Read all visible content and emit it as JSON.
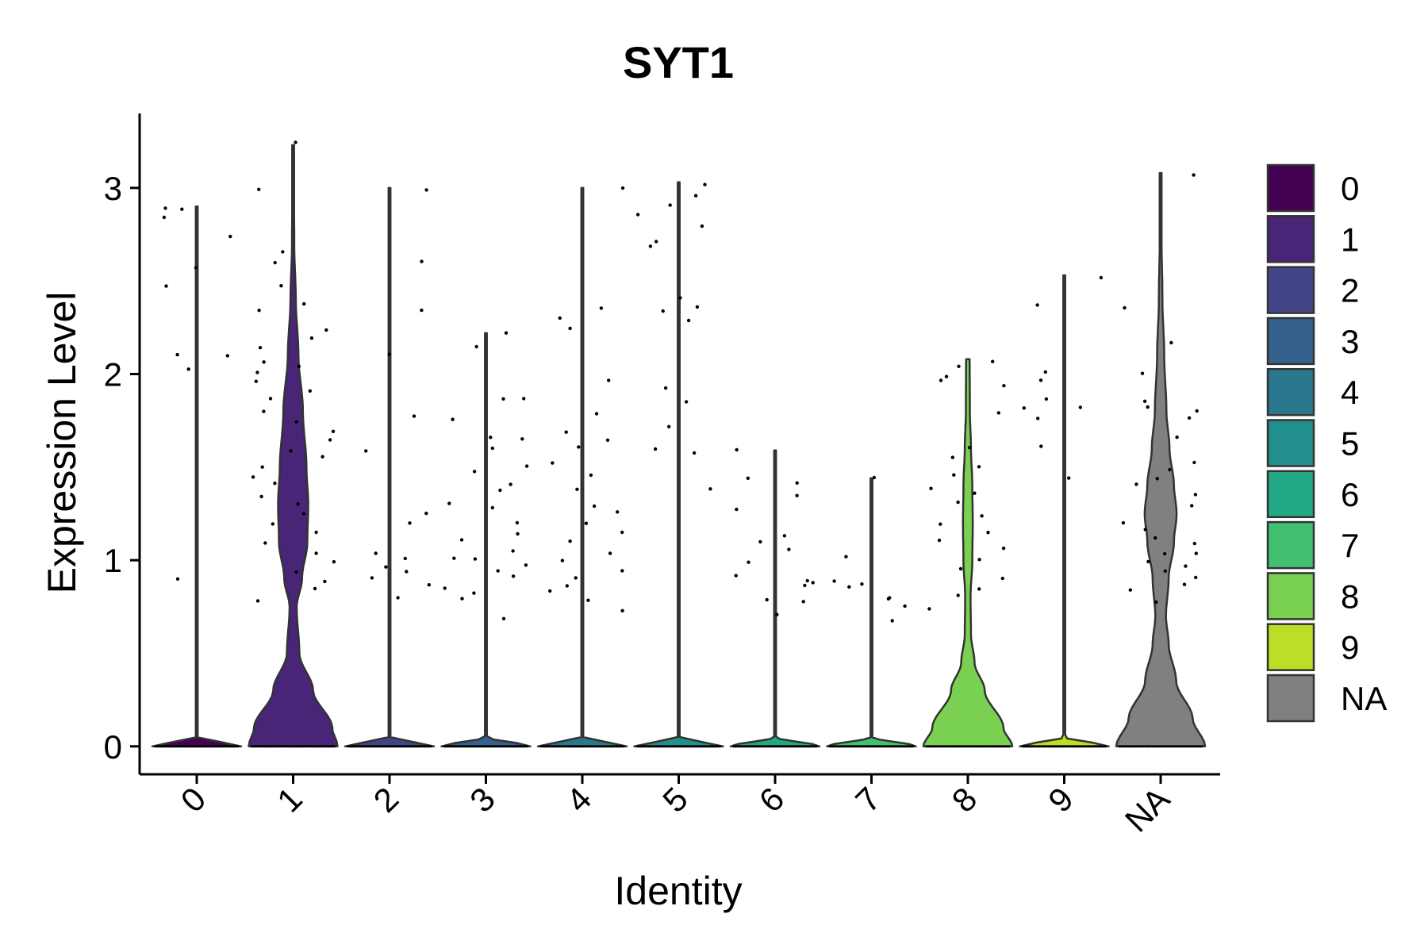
{
  "chart_data": {
    "type": "violin",
    "title": "SYT1",
    "xlabel": "Identity",
    "ylabel": "Expression Level",
    "categories": [
      "0",
      "1",
      "2",
      "3",
      "4",
      "5",
      "6",
      "7",
      "8",
      "9",
      "NA"
    ],
    "ylim": [
      -0.15,
      3.4
    ],
    "yticks": [
      0,
      1,
      2,
      3
    ],
    "colors": {
      "0": "#440154",
      "1": "#482576",
      "2": "#414487",
      "3": "#35608D",
      "4": "#2A788E",
      "5": "#21908C",
      "6": "#22A884",
      "7": "#43BF71",
      "8": "#7AD151",
      "9": "#BBDF27",
      "NA": "#808080"
    },
    "series": [
      {
        "category": "0",
        "max": 2.9,
        "profile": [
          [
            0.0,
            1.0
          ],
          [
            0.05,
            0.0
          ],
          [
            2.9,
            0.0
          ]
        ],
        "points": [
          2.84,
          2.9,
          2.58,
          2.47,
          2.89,
          2.75,
          2.1,
          2.09,
          2.02,
          0.91
        ]
      },
      {
        "category": "1",
        "max": 3.23,
        "profile": [
          [
            0.0,
            1.0
          ],
          [
            0.1,
            0.88
          ],
          [
            0.3,
            0.45
          ],
          [
            0.5,
            0.14
          ],
          [
            0.75,
            0.08
          ],
          [
            0.9,
            0.2
          ],
          [
            1.1,
            0.32
          ],
          [
            1.3,
            0.34
          ],
          [
            1.5,
            0.3
          ],
          [
            1.8,
            0.22
          ],
          [
            2.1,
            0.12
          ],
          [
            2.4,
            0.06
          ],
          [
            2.7,
            0.025
          ],
          [
            3.23,
            0.008
          ]
        ],
        "points": [
          3.23,
          2.99,
          2.67,
          2.6,
          2.47,
          2.37,
          2.33,
          2.25,
          2.2,
          2.15,
          2.07,
          2.03,
          2.0,
          1.95,
          1.9,
          1.86,
          1.8,
          1.75,
          1.7,
          1.65,
          1.6,
          1.55,
          1.5,
          1.45,
          1.4,
          1.35,
          1.3,
          1.25,
          1.2,
          1.15,
          1.1,
          1.05,
          1.0,
          0.95,
          0.9,
          0.86,
          0.79
        ]
      },
      {
        "category": "2",
        "max": 3.0,
        "profile": [
          [
            0.0,
            1.0
          ],
          [
            0.05,
            0.0
          ],
          [
            3.0,
            0.0
          ]
        ],
        "points": [
          2.6,
          3.0,
          2.33,
          2.1,
          1.77,
          1.58,
          1.25,
          1.2,
          1.05,
          1.0,
          0.97,
          0.95,
          0.91,
          0.87,
          0.81
        ]
      },
      {
        "category": "3",
        "max": 2.22,
        "profile": [
          [
            0.0,
            1.0
          ],
          [
            0.05,
            0.0
          ],
          [
            2.22,
            0.0
          ]
        ],
        "points": [
          2.22,
          2.15,
          1.88,
          1.87,
          1.76,
          1.67,
          1.65,
          1.6,
          1.5,
          1.47,
          1.4,
          1.38,
          1.32,
          1.27,
          1.2,
          1.15,
          1.1,
          1.05,
          1.02,
          1.0,
          0.97,
          0.93,
          0.9,
          0.86,
          0.82,
          0.78,
          0.68
        ]
      },
      {
        "category": "4",
        "max": 3.0,
        "profile": [
          [
            0.0,
            1.0
          ],
          [
            0.05,
            0.0
          ],
          [
            3.0,
            0.0
          ]
        ],
        "points": [
          3.0,
          2.36,
          2.3,
          2.25,
          1.96,
          1.79,
          1.69,
          1.65,
          1.6,
          1.52,
          1.45,
          1.38,
          1.3,
          1.25,
          1.2,
          1.15,
          1.1,
          1.05,
          1.0,
          0.95,
          0.9,
          0.86,
          0.82,
          0.78,
          0.74
        ]
      },
      {
        "category": "5",
        "max": 3.03,
        "profile": [
          [
            0.0,
            1.0
          ],
          [
            0.05,
            0.0
          ],
          [
            3.03,
            0.0
          ]
        ],
        "points": [
          3.03,
          2.97,
          2.9,
          2.87,
          2.8,
          2.7,
          2.68,
          2.4,
          2.37,
          2.35,
          2.28,
          1.93,
          1.86,
          1.72,
          1.6,
          1.57,
          1.37
        ]
      },
      {
        "category": "6",
        "max": 1.59,
        "profile": [
          [
            0.0,
            1.0
          ],
          [
            0.05,
            0.0
          ],
          [
            1.59,
            0.0
          ]
        ],
        "points": [
          1.59,
          1.45,
          1.42,
          1.36,
          1.28,
          1.12,
          1.1,
          1.05,
          0.98,
          0.93,
          0.9,
          0.88,
          0.85,
          0.8,
          0.77,
          0.71
        ]
      },
      {
        "category": "7",
        "max": 1.44,
        "profile": [
          [
            0.0,
            1.0
          ],
          [
            0.05,
            0.0
          ],
          [
            1.44,
            0.0
          ]
        ],
        "points": [
          1.44,
          1.03,
          0.89,
          0.87,
          0.85,
          0.81,
          0.79,
          0.75,
          0.68
        ]
      },
      {
        "category": "8",
        "max": 2.08,
        "profile": [
          [
            0.0,
            1.0
          ],
          [
            0.1,
            0.8
          ],
          [
            0.3,
            0.38
          ],
          [
            0.45,
            0.15
          ],
          [
            0.6,
            0.07
          ],
          [
            0.8,
            0.06
          ],
          [
            1.0,
            0.1
          ],
          [
            1.2,
            0.11
          ],
          [
            1.4,
            0.1
          ],
          [
            1.6,
            0.07
          ],
          [
            1.8,
            0.045
          ],
          [
            2.08,
            0.04
          ]
        ],
        "points": [
          2.08,
          2.05,
          2.0,
          1.98,
          1.95,
          1.8,
          1.6,
          1.55,
          1.5,
          1.45,
          1.4,
          1.35,
          1.3,
          1.25,
          1.2,
          1.15,
          1.1,
          1.05,
          1.0,
          0.95,
          0.9,
          0.85,
          0.8,
          0.75
        ]
      },
      {
        "category": "9",
        "max": 2.53,
        "profile": [
          [
            0.0,
            1.0
          ],
          [
            0.05,
            0.0
          ],
          [
            2.53,
            0.0
          ]
        ],
        "points": [
          2.53,
          2.37,
          2.0,
          1.97,
          1.86,
          1.82,
          1.81,
          1.77,
          1.62,
          1.43
        ]
      },
      {
        "category": "NA",
        "max": 3.08,
        "profile": [
          [
            0.0,
            1.0
          ],
          [
            0.15,
            0.72
          ],
          [
            0.35,
            0.35
          ],
          [
            0.55,
            0.18
          ],
          [
            0.7,
            0.12
          ],
          [
            0.9,
            0.18
          ],
          [
            1.1,
            0.3
          ],
          [
            1.25,
            0.36
          ],
          [
            1.4,
            0.3
          ],
          [
            1.6,
            0.2
          ],
          [
            1.8,
            0.13
          ],
          [
            2.1,
            0.08
          ],
          [
            2.4,
            0.04
          ],
          [
            2.8,
            0.015
          ],
          [
            3.08,
            0.005
          ]
        ],
        "points": [
          3.08,
          2.37,
          2.18,
          2.0,
          1.86,
          1.83,
          1.8,
          1.75,
          1.65,
          1.53,
          1.5,
          1.45,
          1.4,
          1.35,
          1.3,
          1.2,
          1.16,
          1.12,
          1.08,
          1.05,
          1.03,
          1.0,
          0.98,
          0.94,
          0.9,
          0.87,
          0.83,
          0.77
        ]
      }
    ],
    "legend": {
      "position": "right",
      "entries": [
        "0",
        "1",
        "2",
        "3",
        "4",
        "5",
        "6",
        "7",
        "8",
        "9",
        "NA"
      ]
    },
    "grid": false
  }
}
